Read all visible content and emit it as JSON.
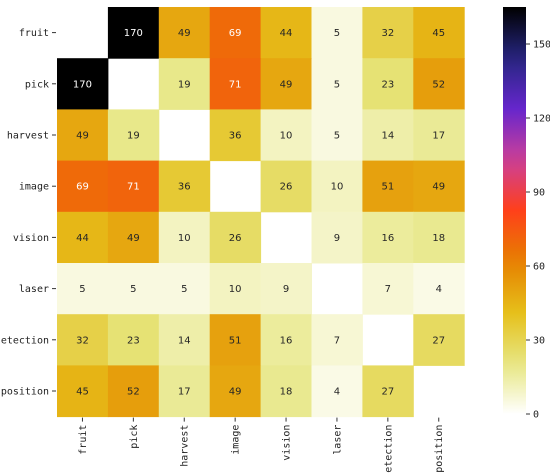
{
  "chart_data": {
    "type": "heatmap",
    "title": "",
    "xlabel": "",
    "ylabel": "",
    "categories": [
      "fruit",
      "pick",
      "harvest",
      "image",
      "vision",
      "laser",
      "detection",
      "position"
    ],
    "values": [
      [
        null,
        170,
        49,
        69,
        44,
        5,
        32,
        45
      ],
      [
        170,
        null,
        19,
        71,
        49,
        5,
        23,
        52
      ],
      [
        49,
        19,
        null,
        36,
        10,
        5,
        14,
        17
      ],
      [
        69,
        71,
        36,
        null,
        26,
        10,
        51,
        49
      ],
      [
        44,
        49,
        10,
        26,
        null,
        9,
        16,
        18
      ],
      [
        5,
        5,
        5,
        10,
        9,
        null,
        7,
        4
      ],
      [
        32,
        23,
        14,
        51,
        16,
        7,
        null,
        27
      ],
      [
        45,
        52,
        17,
        49,
        18,
        4,
        27,
        null
      ]
    ],
    "colorbar": {
      "range": [
        0,
        165
      ],
      "ticks": [
        0,
        30,
        60,
        90,
        120,
        150
      ],
      "colormap": "CMRmap_r"
    },
    "grid": false,
    "legend": "right"
  }
}
